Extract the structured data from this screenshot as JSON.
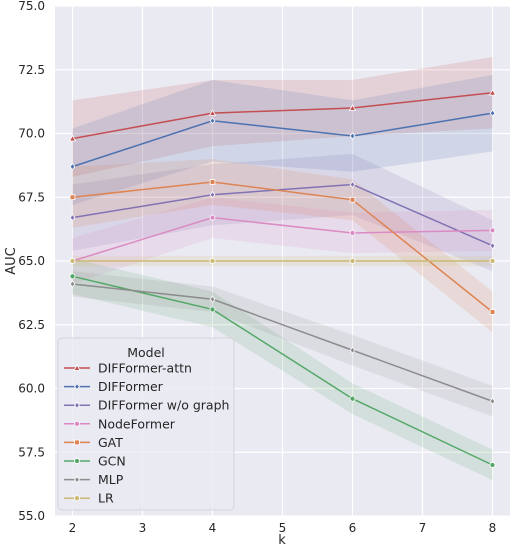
{
  "chart_data": {
    "type": "line",
    "title": "",
    "xlabel": "k",
    "ylabel": "AUC",
    "xlim": [
      1.75,
      8.25
    ],
    "ylim": [
      55.0,
      75.0
    ],
    "x_ticks": [
      2,
      3,
      4,
      5,
      6,
      7,
      8
    ],
    "x_tick_labels": [
      "2",
      "3",
      "4",
      "5",
      "6",
      "7",
      "8"
    ],
    "y_ticks": [
      55.0,
      57.5,
      60.0,
      62.5,
      65.0,
      67.5,
      70.0,
      72.5,
      75.0
    ],
    "y_tick_labels": [
      "55.0",
      "57.5",
      "60.0",
      "62.5",
      "65.0",
      "67.5",
      "70.0",
      "72.5",
      "75.0"
    ],
    "grid": true,
    "legend_title": "Model",
    "legend_position": "lower-left",
    "x": [
      2,
      4,
      6,
      8
    ],
    "series": [
      {
        "name": "DIFFormer-attn",
        "color": "#c44e52",
        "marker": "triangle",
        "values": [
          69.8,
          70.8,
          71.0,
          71.6
        ],
        "band": [
          1.5,
          1.3,
          1.1,
          1.4
        ]
      },
      {
        "name": "DIFFormer",
        "color": "#4c72b0",
        "marker": "diamond",
        "values": [
          68.7,
          70.5,
          69.9,
          70.8
        ],
        "band": [
          1.5,
          1.6,
          1.4,
          1.5
        ]
      },
      {
        "name": "DIFFormer w/o graph",
        "color": "#8172b3",
        "marker": "diamond",
        "values": [
          66.7,
          67.6,
          68.0,
          65.6
        ],
        "band": [
          1.3,
          1.2,
          1.2,
          1.0
        ]
      },
      {
        "name": "NodeFormer",
        "color": "#da8bc3",
        "marker": "circle",
        "values": [
          65.0,
          66.7,
          66.1,
          66.2
        ],
        "band": [
          0.9,
          0.8,
          0.8,
          0.8
        ]
      },
      {
        "name": "GAT",
        "color": "#dd8452",
        "marker": "square",
        "values": [
          67.5,
          68.1,
          67.4,
          63.0
        ],
        "band": [
          1.2,
          0.9,
          0.8,
          0.8
        ]
      },
      {
        "name": "GCN",
        "color": "#55a868",
        "marker": "circle",
        "values": [
          64.4,
          63.1,
          59.6,
          57.0
        ],
        "band": [
          0.7,
          0.7,
          0.6,
          0.6
        ]
      },
      {
        "name": "MLP",
        "color": "#8c8c8c",
        "marker": "diamond",
        "values": [
          64.1,
          63.5,
          61.5,
          59.5
        ],
        "band": [
          0.5,
          0.5,
          0.6,
          0.6
        ]
      },
      {
        "name": "LR",
        "color": "#ccb974",
        "marker": "circle",
        "values": [
          65.0,
          65.0,
          65.0,
          65.0
        ],
        "band": [
          0.2,
          0.2,
          0.2,
          0.2
        ]
      }
    ]
  }
}
